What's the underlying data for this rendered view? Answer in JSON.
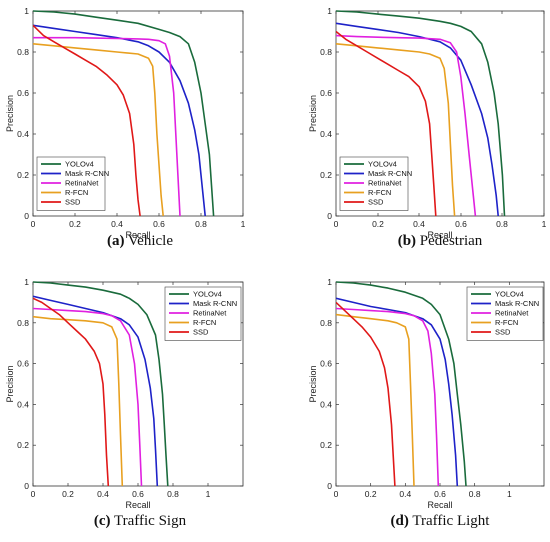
{
  "chart_data": [
    {
      "type": "line",
      "caption_letter": "(a)",
      "caption_text": " Vehicle",
      "xlabel": "Recall",
      "ylabel": "Precision",
      "xlim": [
        0,
        1
      ],
      "ylim": [
        0,
        1
      ],
      "xticks": [
        "0",
        "0.2",
        "0.4",
        "0.6",
        "0.8",
        "1"
      ],
      "yticks": [
        "0",
        "0.2",
        "0.4",
        "0.6",
        "0.8",
        "1"
      ],
      "grid": false,
      "legend": "bottom-left",
      "series": [
        {
          "name": "YOLOv4",
          "color": "#1a6b3c",
          "x": [
            0,
            0.1,
            0.2,
            0.3,
            0.4,
            0.5,
            0.6,
            0.65,
            0.7,
            0.74,
            0.77,
            0.8,
            0.82,
            0.84,
            0.85,
            0.86
          ],
          "y": [
            1.0,
            0.995,
            0.985,
            0.97,
            0.955,
            0.94,
            0.91,
            0.895,
            0.875,
            0.84,
            0.75,
            0.6,
            0.45,
            0.3,
            0.15,
            0
          ]
        },
        {
          "name": "Mask R-CNN",
          "color": "#1e22c8",
          "x": [
            0,
            0.1,
            0.2,
            0.3,
            0.4,
            0.5,
            0.55,
            0.6,
            0.65,
            0.7,
            0.74,
            0.77,
            0.79,
            0.8,
            0.82
          ],
          "y": [
            0.93,
            0.915,
            0.9,
            0.885,
            0.87,
            0.85,
            0.83,
            0.8,
            0.75,
            0.66,
            0.55,
            0.42,
            0.3,
            0.2,
            0
          ]
        },
        {
          "name": "RetinaNet",
          "color": "#e020e0",
          "x": [
            0,
            0.1,
            0.2,
            0.3,
            0.4,
            0.5,
            0.55,
            0.6,
            0.63,
            0.65,
            0.67,
            0.68,
            0.69,
            0.7
          ],
          "y": [
            0.87,
            0.87,
            0.87,
            0.868,
            0.866,
            0.864,
            0.862,
            0.855,
            0.84,
            0.78,
            0.6,
            0.4,
            0.2,
            0
          ]
        },
        {
          "name": "R-FCN",
          "color": "#e8a020",
          "x": [
            0,
            0.1,
            0.2,
            0.3,
            0.4,
            0.5,
            0.55,
            0.57,
            0.58,
            0.59,
            0.6,
            0.61,
            0.62
          ],
          "y": [
            0.84,
            0.83,
            0.82,
            0.81,
            0.8,
            0.79,
            0.77,
            0.73,
            0.6,
            0.4,
            0.25,
            0.1,
            0
          ]
        },
        {
          "name": "SSD",
          "color": "#e01818",
          "x": [
            0,
            0.05,
            0.1,
            0.15,
            0.2,
            0.25,
            0.3,
            0.35,
            0.4,
            0.43,
            0.46,
            0.48,
            0.49,
            0.5,
            0.51
          ],
          "y": [
            0.93,
            0.88,
            0.85,
            0.82,
            0.79,
            0.76,
            0.73,
            0.69,
            0.64,
            0.59,
            0.5,
            0.35,
            0.2,
            0.08,
            0
          ]
        }
      ]
    },
    {
      "type": "line",
      "caption_letter": "(b)",
      "caption_text": " Pedestrian",
      "xlabel": "Recall",
      "ylabel": "Precision",
      "xlim": [
        0,
        1
      ],
      "ylim": [
        0,
        1
      ],
      "xticks": [
        "0",
        "0.2",
        "0.4",
        "0.6",
        "0.8",
        "1"
      ],
      "yticks": [
        "0",
        "0.2",
        "0.4",
        "0.6",
        "0.8",
        "1"
      ],
      "grid": false,
      "legend": "bottom-left",
      "series": [
        {
          "name": "YOLOv4",
          "color": "#1a6b3c",
          "x": [
            0,
            0.1,
            0.2,
            0.3,
            0.4,
            0.5,
            0.55,
            0.6,
            0.65,
            0.7,
            0.73,
            0.76,
            0.78,
            0.8,
            0.81
          ],
          "y": [
            1.0,
            0.995,
            0.985,
            0.975,
            0.965,
            0.95,
            0.94,
            0.925,
            0.9,
            0.84,
            0.75,
            0.6,
            0.45,
            0.2,
            0
          ]
        },
        {
          "name": "Mask R-CNN",
          "color": "#1e22c8",
          "x": [
            0,
            0.1,
            0.2,
            0.3,
            0.4,
            0.5,
            0.55,
            0.6,
            0.65,
            0.7,
            0.73,
            0.75,
            0.77,
            0.78
          ],
          "y": [
            0.94,
            0.925,
            0.91,
            0.895,
            0.875,
            0.85,
            0.82,
            0.76,
            0.64,
            0.5,
            0.38,
            0.25,
            0.1,
            0
          ]
        },
        {
          "name": "RetinaNet",
          "color": "#e020e0",
          "x": [
            0,
            0.1,
            0.2,
            0.3,
            0.4,
            0.5,
            0.55,
            0.58,
            0.6,
            0.62,
            0.64,
            0.66,
            0.67
          ],
          "y": [
            0.88,
            0.875,
            0.872,
            0.87,
            0.868,
            0.862,
            0.845,
            0.8,
            0.68,
            0.5,
            0.3,
            0.1,
            0
          ]
        },
        {
          "name": "R-FCN",
          "color": "#e8a020",
          "x": [
            0,
            0.1,
            0.2,
            0.3,
            0.4,
            0.45,
            0.5,
            0.52,
            0.54,
            0.55,
            0.56,
            0.57
          ],
          "y": [
            0.84,
            0.83,
            0.82,
            0.81,
            0.8,
            0.79,
            0.77,
            0.72,
            0.55,
            0.35,
            0.15,
            0
          ]
        },
        {
          "name": "SSD",
          "color": "#e01818",
          "x": [
            0,
            0.05,
            0.1,
            0.15,
            0.2,
            0.25,
            0.3,
            0.35,
            0.4,
            0.43,
            0.45,
            0.46,
            0.47,
            0.48
          ],
          "y": [
            0.9,
            0.86,
            0.83,
            0.8,
            0.77,
            0.74,
            0.71,
            0.68,
            0.63,
            0.56,
            0.45,
            0.3,
            0.15,
            0
          ]
        }
      ]
    },
    {
      "type": "line",
      "caption_letter": "(c)",
      "caption_text": " Traffic Sign",
      "xlabel": "Recall",
      "ylabel": "Precision",
      "xlim": [
        0,
        1.2
      ],
      "ylim": [
        0,
        1
      ],
      "xticks": [
        "0",
        "0.2",
        "0.4",
        "0.6",
        "0.8",
        "1"
      ],
      "yticks": [
        "0",
        "0.2",
        "0.4",
        "0.6",
        "0.8",
        "1"
      ],
      "grid": false,
      "legend": "top-right",
      "series": [
        {
          "name": "YOLOv4",
          "color": "#1a6b3c",
          "x": [
            0,
            0.1,
            0.2,
            0.3,
            0.4,
            0.5,
            0.55,
            0.6,
            0.65,
            0.7,
            0.72,
            0.74,
            0.75,
            0.76,
            0.77
          ],
          "y": [
            1.0,
            0.995,
            0.985,
            0.975,
            0.96,
            0.94,
            0.92,
            0.89,
            0.84,
            0.74,
            0.62,
            0.45,
            0.3,
            0.15,
            0
          ]
        },
        {
          "name": "Mask R-CNN",
          "color": "#1e22c8",
          "x": [
            0,
            0.1,
            0.2,
            0.3,
            0.4,
            0.5,
            0.55,
            0.6,
            0.64,
            0.67,
            0.69,
            0.7,
            0.71
          ],
          "y": [
            0.93,
            0.91,
            0.89,
            0.87,
            0.85,
            0.82,
            0.79,
            0.73,
            0.62,
            0.48,
            0.33,
            0.18,
            0
          ]
        },
        {
          "name": "RetinaNet",
          "color": "#e020e0",
          "x": [
            0,
            0.1,
            0.2,
            0.3,
            0.4,
            0.45,
            0.5,
            0.55,
            0.58,
            0.6,
            0.61,
            0.62
          ],
          "y": [
            0.87,
            0.865,
            0.86,
            0.855,
            0.845,
            0.835,
            0.81,
            0.74,
            0.6,
            0.4,
            0.2,
            0
          ]
        },
        {
          "name": "R-FCN",
          "color": "#e8a020",
          "x": [
            0,
            0.1,
            0.2,
            0.3,
            0.4,
            0.45,
            0.48,
            0.49,
            0.5,
            0.51
          ],
          "y": [
            0.83,
            0.82,
            0.815,
            0.81,
            0.8,
            0.78,
            0.72,
            0.5,
            0.25,
            0
          ]
        },
        {
          "name": "SSD",
          "color": "#e01818",
          "x": [
            0,
            0.05,
            0.1,
            0.15,
            0.2,
            0.25,
            0.3,
            0.35,
            0.38,
            0.4,
            0.41,
            0.42,
            0.43
          ],
          "y": [
            0.92,
            0.9,
            0.87,
            0.84,
            0.8,
            0.76,
            0.72,
            0.66,
            0.6,
            0.5,
            0.35,
            0.15,
            0
          ]
        }
      ]
    },
    {
      "type": "line",
      "caption_letter": "(d)",
      "caption_text": " Traffic Light",
      "xlabel": "Recall",
      "ylabel": "Precision",
      "xlim": [
        0,
        1.2
      ],
      "ylim": [
        0,
        1
      ],
      "xticks": [
        "0",
        "0.2",
        "0.4",
        "0.6",
        "0.8",
        "1"
      ],
      "yticks": [
        "0",
        "0.2",
        "0.4",
        "0.6",
        "0.8",
        "1"
      ],
      "grid": false,
      "legend": "top-right",
      "series": [
        {
          "name": "YOLOv4",
          "color": "#1a6b3c",
          "x": [
            0,
            0.1,
            0.2,
            0.3,
            0.4,
            0.5,
            0.55,
            0.6,
            0.65,
            0.68,
            0.7,
            0.72,
            0.74,
            0.75
          ],
          "y": [
            1.0,
            0.995,
            0.985,
            0.97,
            0.95,
            0.92,
            0.89,
            0.84,
            0.72,
            0.6,
            0.45,
            0.3,
            0.12,
            0
          ]
        },
        {
          "name": "Mask R-CNN",
          "color": "#1e22c8",
          "x": [
            0,
            0.1,
            0.2,
            0.3,
            0.4,
            0.5,
            0.55,
            0.6,
            0.63,
            0.65,
            0.67,
            0.69,
            0.7
          ],
          "y": [
            0.92,
            0.9,
            0.88,
            0.865,
            0.85,
            0.82,
            0.79,
            0.72,
            0.62,
            0.5,
            0.35,
            0.15,
            0
          ]
        },
        {
          "name": "RetinaNet",
          "color": "#e020e0",
          "x": [
            0,
            0.1,
            0.2,
            0.3,
            0.4,
            0.45,
            0.5,
            0.53,
            0.55,
            0.57,
            0.58,
            0.59
          ],
          "y": [
            0.87,
            0.865,
            0.86,
            0.855,
            0.845,
            0.835,
            0.81,
            0.76,
            0.65,
            0.45,
            0.25,
            0
          ]
        },
        {
          "name": "R-FCN",
          "color": "#e8a020",
          "x": [
            0,
            0.1,
            0.2,
            0.3,
            0.35,
            0.4,
            0.42,
            0.43,
            0.44,
            0.45
          ],
          "y": [
            0.84,
            0.83,
            0.82,
            0.81,
            0.8,
            0.78,
            0.72,
            0.5,
            0.25,
            0
          ]
        },
        {
          "name": "SSD",
          "color": "#e01818",
          "x": [
            0,
            0.05,
            0.1,
            0.15,
            0.2,
            0.25,
            0.28,
            0.3,
            0.32,
            0.33,
            0.34
          ],
          "y": [
            0.9,
            0.86,
            0.82,
            0.78,
            0.73,
            0.66,
            0.58,
            0.48,
            0.3,
            0.15,
            0
          ]
        }
      ]
    }
  ]
}
